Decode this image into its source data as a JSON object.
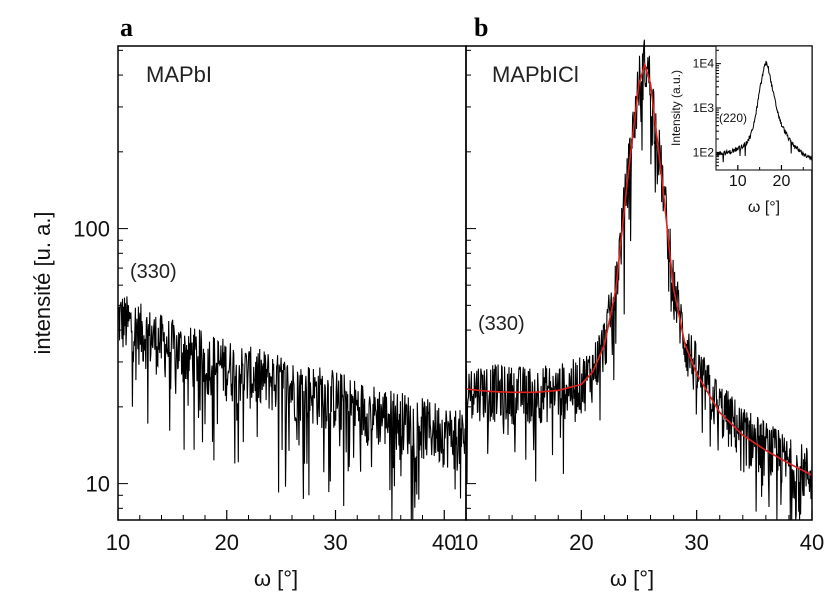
{
  "chart_data": [
    {
      "panel": "a",
      "type": "line",
      "label": "MAPbI",
      "peak_label": "(330)",
      "xlabel": "ω [°]",
      "ylabel": "intensité [u. a.]",
      "xlim": [
        10,
        42
      ],
      "ylim": [
        7.2,
        520
      ],
      "y_scale": "log",
      "x_ticks": [
        "10",
        "20",
        "30",
        "40"
      ],
      "y_ticks": [
        "100",
        "10"
      ],
      "series": [
        {
          "color": "#000000",
          "x": [
            10,
            12,
            14,
            16,
            18,
            20,
            22,
            24,
            26,
            28,
            30,
            32,
            34,
            36,
            38,
            40,
            42
          ],
          "y": [
            45,
            40,
            36,
            33,
            31,
            29,
            27,
            26,
            24,
            23,
            22,
            20,
            19,
            18,
            17,
            16,
            15
          ]
        }
      ]
    },
    {
      "panel": "b",
      "type": "line",
      "label": "MAPbICl",
      "peak_label": "(330)",
      "xlabel": "ω [°]",
      "xlim": [
        10,
        40
      ],
      "ylim": [
        7.2,
        520
      ],
      "y_scale": "log",
      "x_ticks": [
        "10",
        "20",
        "30",
        "40"
      ],
      "series": [
        {
          "color": "#000000",
          "x": [
            10,
            12,
            14,
            16,
            18,
            20,
            21,
            22,
            23,
            24,
            25,
            25.5,
            26,
            27,
            28,
            29,
            30,
            32,
            34,
            36,
            38,
            40
          ],
          "y": [
            24,
            23.5,
            23,
            23,
            23.5,
            25,
            28,
            36,
            60,
            160,
            380,
            450,
            380,
            160,
            60,
            36,
            28,
            20,
            16,
            14,
            12,
            11
          ]
        },
        {
          "color": "#e0201b",
          "fit": true,
          "x": [
            10,
            12,
            14,
            16,
            18,
            20,
            21,
            22,
            23,
            24,
            25,
            25.5,
            26,
            27,
            28,
            29,
            30,
            32,
            34,
            36,
            38,
            40
          ],
          "y": [
            23.5,
            23,
            22.8,
            22.8,
            23.2,
            24.5,
            27.5,
            35,
            58,
            155,
            370,
            440,
            370,
            155,
            58,
            35,
            27,
            19,
            15.5,
            13.5,
            12,
            10.8
          ]
        }
      ]
    },
    {
      "panel": "b-inset",
      "type": "line",
      "peak_label": "(220)",
      "xlabel": "ω [°]",
      "ylabel": "Intensity (a.u.)",
      "xlim": [
        5,
        27
      ],
      "ylim": [
        40,
        25000
      ],
      "y_scale": "log",
      "x_ticks": [
        "10",
        "20"
      ],
      "y_ticks": [
        "1E4",
        "1E3",
        "1E2"
      ],
      "series": [
        {
          "color": "#000000",
          "x": [
            5,
            8,
            10,
            12,
            13,
            14,
            15,
            16,
            16.5,
            17,
            18,
            19,
            20,
            22,
            24,
            26,
            27
          ],
          "y": [
            90,
            100,
            120,
            160,
            250,
            600,
            2500,
            8000,
            11000,
            8000,
            2500,
            900,
            420,
            180,
            110,
            80,
            70
          ]
        }
      ]
    }
  ]
}
